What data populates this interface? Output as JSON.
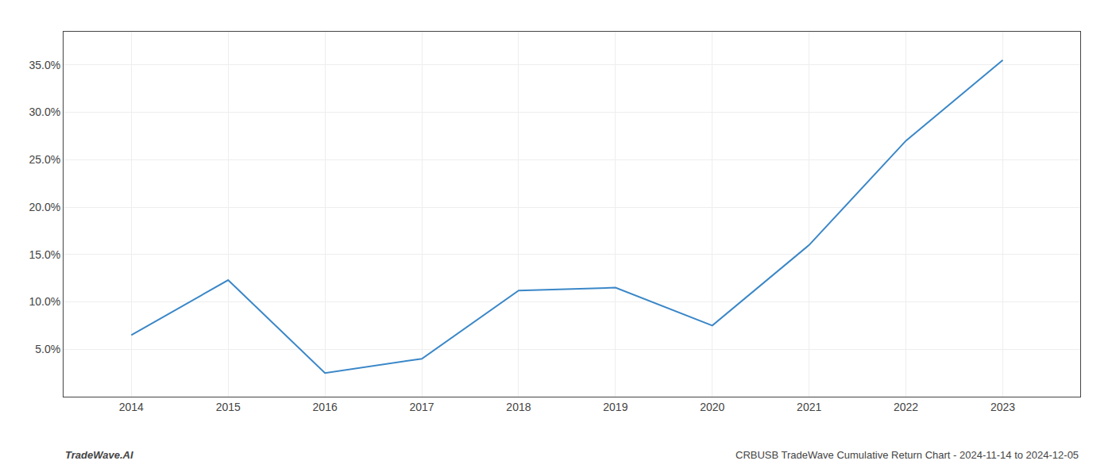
{
  "chart_data": {
    "type": "line",
    "x": [
      2014,
      2015,
      2016,
      2017,
      2018,
      2019,
      2020,
      2021,
      2022,
      2023
    ],
    "values": [
      6.5,
      12.3,
      2.5,
      4.0,
      11.2,
      11.5,
      7.5,
      16.0,
      27.0,
      35.5
    ],
    "color": "#3a87c8",
    "xlim": [
      2013.3,
      2023.8
    ],
    "xticks": [
      2014,
      2015,
      2016,
      2017,
      2018,
      2019,
      2020,
      2021,
      2022,
      2023
    ],
    "ylim": [
      0.0,
      38.5
    ],
    "yticks": [
      {
        "value": 5.0,
        "label": "5.0%"
      },
      {
        "value": 10.0,
        "label": "10.0%"
      },
      {
        "value": 15.0,
        "label": "15.0%"
      },
      {
        "value": 20.0,
        "label": "20.0%"
      },
      {
        "value": 25.0,
        "label": "25.0%"
      },
      {
        "value": 30.0,
        "label": "30.0%"
      },
      {
        "value": 35.0,
        "label": "35.0%"
      }
    ],
    "grid": true,
    "annotations": [
      "TradeWave.AI",
      "CRBUSB TradeWave Cumulative Return Chart - 2024-11-14 to 2024-12-05"
    ]
  }
}
